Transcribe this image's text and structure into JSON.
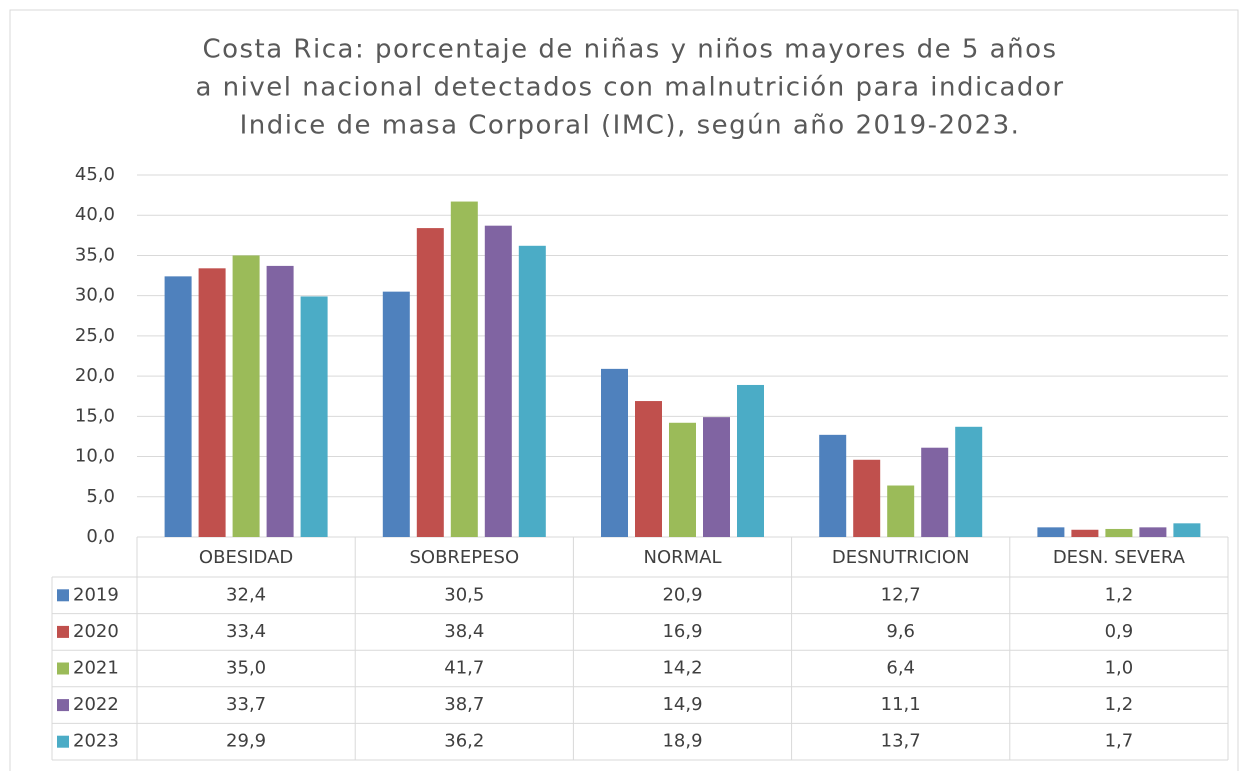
{
  "chart_data": {
    "type": "bar",
    "title": [
      "Costa Rica:  porcentaje de niñas y niños  mayores de 5 años",
      "a nivel nacional detectados con malnutrición  para indicador",
      "Indice de masa Corporal (IMC), según año 2019-2023."
    ],
    "categories": [
      "OBESIDAD",
      "SOBREPESO",
      "NORMAL",
      "DESNUTRICION",
      "DESN. SEVERA"
    ],
    "series": [
      {
        "name": "2019",
        "color": "#4f81bd",
        "values": [
          32.4,
          30.5,
          20.9,
          12.7,
          1.2
        ],
        "value_labels": [
          "32,4",
          "30,5",
          "20,9",
          "12,7",
          "1,2"
        ]
      },
      {
        "name": "2020",
        "color": "#c0504d",
        "values": [
          33.4,
          38.4,
          16.9,
          9.6,
          0.9
        ],
        "value_labels": [
          "33,4",
          "38,4",
          "16,9",
          "9,6",
          "0,9"
        ]
      },
      {
        "name": "2021",
        "color": "#9bbb59",
        "values": [
          35.0,
          41.7,
          14.2,
          6.4,
          1.0
        ],
        "value_labels": [
          "35,0",
          "41,7",
          "14,2",
          "6,4",
          "1,0"
        ]
      },
      {
        "name": "2022",
        "color": "#8064a2",
        "values": [
          33.7,
          38.7,
          14.9,
          11.1,
          1.2
        ],
        "value_labels": [
          "33,7",
          "38,7",
          "14,9",
          "11,1",
          "1,2"
        ]
      },
      {
        "name": "2023",
        "color": "#4bacc6",
        "values": [
          29.9,
          36.2,
          18.9,
          13.7,
          1.7
        ],
        "value_labels": [
          "29,9",
          "36,2",
          "18,9",
          "13,7",
          "1,7"
        ]
      }
    ],
    "ylim": [
      0,
      45
    ],
    "yticks": [
      {
        "value": 0,
        "label": "0,0"
      },
      {
        "value": 5,
        "label": "5,0"
      },
      {
        "value": 10,
        "label": "10,0"
      },
      {
        "value": 15,
        "label": "15,0"
      },
      {
        "value": 20,
        "label": "20,0"
      },
      {
        "value": 25,
        "label": "25,0"
      },
      {
        "value": 30,
        "label": "30,0"
      },
      {
        "value": 35,
        "label": "35,0"
      },
      {
        "value": 40,
        "label": "40,0"
      },
      {
        "value": 45,
        "label": "45,0"
      }
    ],
    "grid": true
  }
}
